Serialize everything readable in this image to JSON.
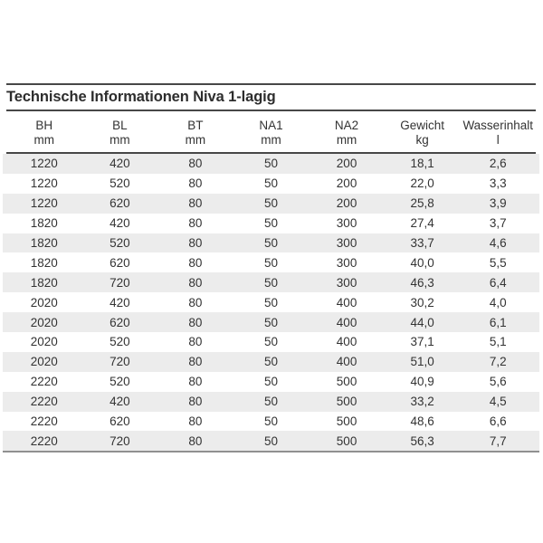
{
  "title": "Technische Informationen Niva 1-lagig",
  "table": {
    "columns": [
      {
        "label": "BH",
        "unit": "mm"
      },
      {
        "label": "BL",
        "unit": "mm"
      },
      {
        "label": "BT",
        "unit": "mm"
      },
      {
        "label": "NA1",
        "unit": "mm"
      },
      {
        "label": "NA2",
        "unit": "mm"
      },
      {
        "label": "Gewicht",
        "unit": "kg"
      },
      {
        "label": "Wasserinhalt",
        "unit": "l"
      }
    ],
    "rows": [
      [
        "1220",
        "420",
        "80",
        "50",
        "200",
        "18,1",
        "2,6"
      ],
      [
        "1220",
        "520",
        "80",
        "50",
        "200",
        "22,0",
        "3,3"
      ],
      [
        "1220",
        "620",
        "80",
        "50",
        "200",
        "25,8",
        "3,9"
      ],
      [
        "1820",
        "420",
        "80",
        "50",
        "300",
        "27,4",
        "3,7"
      ],
      [
        "1820",
        "520",
        "80",
        "50",
        "300",
        "33,7",
        "4,6"
      ],
      [
        "1820",
        "620",
        "80",
        "50",
        "300",
        "40,0",
        "5,5"
      ],
      [
        "1820",
        "720",
        "80",
        "50",
        "300",
        "46,3",
        "6,4"
      ],
      [
        "2020",
        "420",
        "80",
        "50",
        "400",
        "30,2",
        "4,0"
      ],
      [
        "2020",
        "620",
        "80",
        "50",
        "400",
        "44,0",
        "6,1"
      ],
      [
        "2020",
        "520",
        "80",
        "50",
        "400",
        "37,1",
        "5,1"
      ],
      [
        "2020",
        "720",
        "80",
        "50",
        "400",
        "51,0",
        "7,2"
      ],
      [
        "2220",
        "520",
        "80",
        "50",
        "500",
        "40,9",
        "5,6"
      ],
      [
        "2220",
        "420",
        "80",
        "50",
        "500",
        "33,2",
        "4,5"
      ],
      [
        "2220",
        "620",
        "80",
        "50",
        "500",
        "48,6",
        "6,6"
      ],
      [
        "2220",
        "720",
        "80",
        "50",
        "500",
        "56,3",
        "7,7"
      ]
    ]
  },
  "colors": {
    "row_shade": "#ececec",
    "rule_dark": "#474747",
    "rule_bottom": "#909090",
    "text": "#333333"
  }
}
